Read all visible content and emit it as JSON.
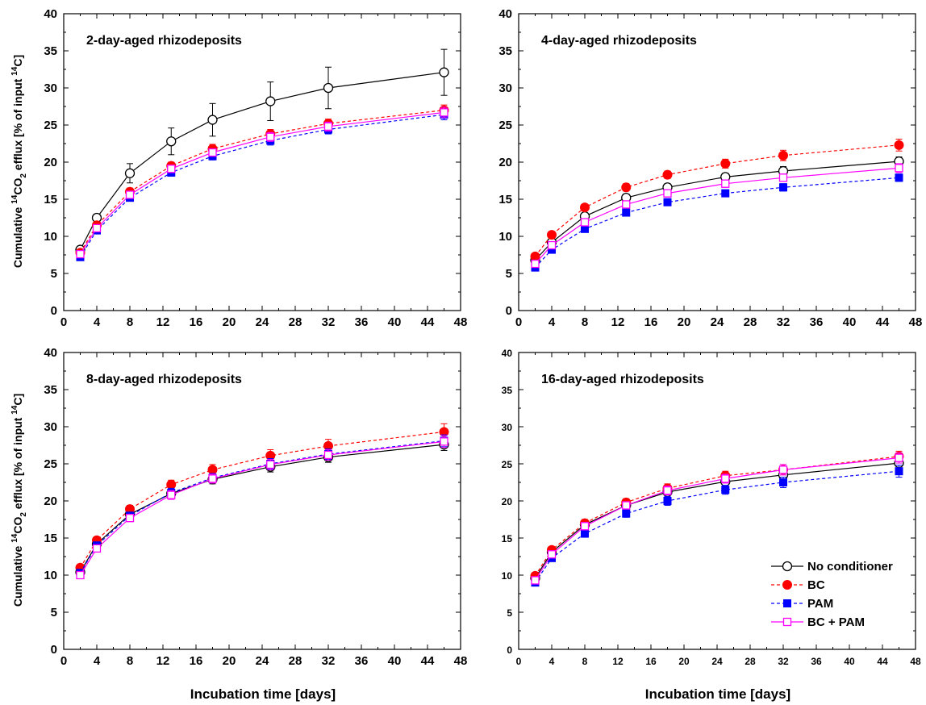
{
  "figure": {
    "xlabel": "Incubation time [days]",
    "ylabel_parts": {
      "main": "Cumulative ",
      "sup_14": "14",
      "co": "CO",
      "sub_2": "2",
      "rest": " efflux [% of input ",
      "sup_14b": "14",
      "end": "C]"
    }
  },
  "legend": [
    {
      "name": "No conditioner",
      "color": "#000000",
      "marker": "open-circle",
      "dash": "solid"
    },
    {
      "name": "BC",
      "color": "#ff0000",
      "marker": "filled-circle",
      "dash": "dashed"
    },
    {
      "name": "PAM",
      "color": "#0000ff",
      "marker": "filled-square",
      "dash": "dashed"
    },
    {
      "name": "BC + PAM",
      "color": "#ff00ff",
      "marker": "open-square",
      "dash": "solid"
    }
  ],
  "chart_data": [
    {
      "type": "line",
      "title": "2-day-aged rhizodeposits",
      "xlim": [
        0,
        48
      ],
      "ylim": [
        0,
        40
      ],
      "xticks": [
        0,
        4,
        8,
        12,
        16,
        20,
        24,
        28,
        32,
        36,
        40,
        44,
        48
      ],
      "yticks": [
        0,
        5,
        10,
        15,
        20,
        25,
        30,
        35,
        40
      ],
      "x": [
        2,
        4,
        8,
        13,
        18,
        25,
        32,
        46
      ],
      "series": [
        {
          "name": "No conditioner",
          "values": [
            8.2,
            12.5,
            18.5,
            22.8,
            25.7,
            28.2,
            30.0,
            32.1
          ],
          "err": [
            0.4,
            0.5,
            1.3,
            1.8,
            2.2,
            2.6,
            2.8,
            3.1
          ]
        },
        {
          "name": "BC",
          "values": [
            7.8,
            11.5,
            16.0,
            19.5,
            21.8,
            23.8,
            25.2,
            27.0
          ],
          "err": [
            0.3,
            0.4,
            0.5,
            0.5,
            0.6,
            0.6,
            0.6,
            0.7
          ]
        },
        {
          "name": "PAM",
          "values": [
            7.2,
            10.8,
            15.2,
            18.6,
            20.8,
            22.9,
            24.4,
            26.4
          ],
          "err": [
            0.3,
            0.4,
            0.4,
            0.5,
            0.5,
            0.6,
            0.6,
            0.7
          ]
        },
        {
          "name": "BC + PAM",
          "values": [
            7.6,
            11.1,
            15.6,
            19.1,
            21.3,
            23.4,
            24.8,
            26.7
          ],
          "err": [
            0.3,
            0.4,
            0.4,
            0.5,
            0.5,
            0.6,
            0.6,
            0.7
          ]
        }
      ]
    },
    {
      "type": "line",
      "title": "4-day-aged rhizodeposits",
      "xlim": [
        0,
        48
      ],
      "ylim": [
        0,
        40
      ],
      "xticks": [
        0,
        4,
        8,
        12,
        16,
        20,
        24,
        28,
        32,
        36,
        40,
        44,
        48
      ],
      "yticks": [
        0,
        5,
        10,
        15,
        20,
        25,
        30,
        35,
        40
      ],
      "x": [
        2,
        4,
        8,
        13,
        18,
        25,
        32,
        46
      ],
      "series": [
        {
          "name": "No conditioner",
          "values": [
            6.8,
            9.2,
            12.7,
            15.2,
            16.6,
            18.0,
            18.8,
            20.1
          ],
          "err": [
            0.3,
            0.3,
            0.4,
            0.5,
            0.5,
            0.5,
            0.6,
            0.6
          ]
        },
        {
          "name": "BC",
          "values": [
            7.3,
            10.2,
            13.9,
            16.6,
            18.3,
            19.8,
            20.9,
            22.3
          ],
          "err": [
            0.3,
            0.3,
            0.4,
            0.5,
            0.5,
            0.6,
            0.7,
            0.8
          ]
        },
        {
          "name": "PAM",
          "values": [
            5.8,
            8.2,
            11.0,
            13.2,
            14.6,
            15.8,
            16.6,
            17.9
          ],
          "err": [
            0.3,
            0.3,
            0.3,
            0.4,
            0.4,
            0.4,
            0.5,
            0.5
          ]
        },
        {
          "name": "BC + PAM",
          "values": [
            6.3,
            8.8,
            11.9,
            14.3,
            15.8,
            17.1,
            17.9,
            19.2
          ],
          "err": [
            0.3,
            0.3,
            0.4,
            0.4,
            0.5,
            0.5,
            0.5,
            0.6
          ]
        }
      ]
    },
    {
      "type": "line",
      "title": "8-day-aged rhizodeposits",
      "xlim": [
        0,
        48
      ],
      "ylim": [
        0,
        40
      ],
      "xticks": [
        0,
        4,
        8,
        12,
        16,
        20,
        24,
        28,
        32,
        36,
        40,
        44,
        48
      ],
      "yticks": [
        0,
        5,
        10,
        15,
        20,
        25,
        30,
        35,
        40
      ],
      "x": [
        2,
        4,
        8,
        13,
        18,
        25,
        32,
        46
      ],
      "series": [
        {
          "name": "No conditioner",
          "values": [
            10.4,
            14.2,
            18.2,
            21.0,
            22.9,
            24.6,
            25.9,
            27.6
          ],
          "err": [
            0.4,
            0.4,
            0.5,
            0.6,
            0.6,
            0.7,
            0.7,
            0.8
          ]
        },
        {
          "name": "BC",
          "values": [
            11.0,
            14.7,
            18.9,
            22.2,
            24.2,
            26.1,
            27.4,
            29.3
          ],
          "err": [
            0.4,
            0.4,
            0.5,
            0.6,
            0.7,
            0.8,
            0.9,
            1.1
          ]
        },
        {
          "name": "PAM",
          "values": [
            10.3,
            14.0,
            18.0,
            21.1,
            23.1,
            25.0,
            26.3,
            28.1
          ],
          "err": [
            0.4,
            0.4,
            0.5,
            0.6,
            0.6,
            0.7,
            0.7,
            0.8
          ]
        },
        {
          "name": "BC + PAM",
          "values": [
            10.0,
            13.6,
            17.7,
            20.8,
            23.0,
            24.9,
            26.2,
            28.0
          ],
          "err": [
            0.4,
            0.4,
            0.5,
            0.6,
            0.6,
            0.7,
            0.7,
            0.8
          ]
        }
      ]
    },
    {
      "type": "line",
      "title": "16-day-aged rhizodeposits",
      "xlim": [
        0,
        48
      ],
      "ylim": [
        0,
        40
      ],
      "xticks": [
        0,
        4,
        8,
        12,
        16,
        20,
        24,
        28,
        32,
        36,
        40,
        44,
        48
      ],
      "yticks": [
        0,
        5,
        10,
        15,
        20,
        25,
        30,
        35,
        40
      ],
      "x": [
        2,
        4,
        8,
        13,
        18,
        25,
        32,
        46
      ],
      "series": [
        {
          "name": "No conditioner",
          "values": [
            9.6,
            13.1,
            16.8,
            19.4,
            21.2,
            22.6,
            23.5,
            25.1
          ],
          "err": [
            0.4,
            0.4,
            0.5,
            0.5,
            0.6,
            0.6,
            0.7,
            0.7
          ]
        },
        {
          "name": "BC",
          "values": [
            9.9,
            13.4,
            17.0,
            19.8,
            21.7,
            23.4,
            24.2,
            26.0
          ],
          "err": [
            0.4,
            0.4,
            0.5,
            0.5,
            0.6,
            0.6,
            0.7,
            0.7
          ]
        },
        {
          "name": "PAM",
          "values": [
            9.0,
            12.3,
            15.6,
            18.3,
            20.0,
            21.5,
            22.5,
            24.0
          ],
          "err": [
            0.4,
            0.4,
            0.5,
            0.5,
            0.6,
            0.6,
            0.7,
            0.8
          ]
        },
        {
          "name": "BC + PAM",
          "values": [
            9.3,
            12.8,
            16.6,
            19.4,
            21.4,
            23.0,
            24.2,
            25.8
          ],
          "err": [
            0.4,
            0.4,
            0.5,
            0.5,
            0.6,
            0.6,
            0.7,
            0.7
          ]
        }
      ]
    }
  ]
}
